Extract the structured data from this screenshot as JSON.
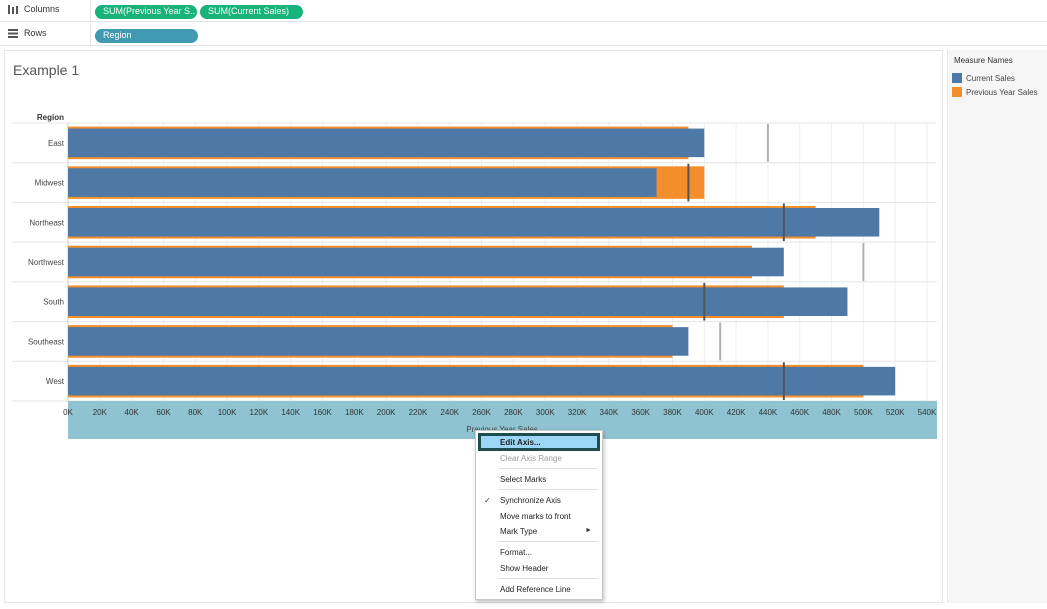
{
  "shelves": {
    "columns_label": "Columns",
    "rows_label": "Rows",
    "columns_pills": [
      "SUM(Previous Year S..",
      "SUM(Current Sales)"
    ],
    "rows_pill": "Region"
  },
  "sheet": {
    "title": "Example 1",
    "region_header": "Region",
    "axis_title": "Previous Year Sales"
  },
  "legend": {
    "title": "Measure Names",
    "items": [
      {
        "label": "Current Sales",
        "color": "#4e79a7"
      },
      {
        "label": "Previous Year Sales",
        "color": "#f28e2b"
      }
    ]
  },
  "chart_data": {
    "type": "bar",
    "orientation": "horizontal",
    "categories": [
      "East",
      "Midwest",
      "Northeast",
      "Northwest",
      "South",
      "Southeast",
      "West"
    ],
    "series": [
      {
        "name": "Current Sales",
        "values": [
          400000,
          370000,
          510000,
          450000,
          490000,
          390000,
          520000
        ],
        "color": "#4e79a7"
      },
      {
        "name": "Previous Year Sales",
        "values": [
          390000,
          400000,
          470000,
          430000,
          450000,
          380000,
          500000
        ],
        "color": "#f28e2b"
      }
    ],
    "reference_lines": [
      440000,
      390000,
      450000,
      500000,
      400000,
      410000,
      450000
    ],
    "xlabel": "Previous Year Sales",
    "ylabel": "Region",
    "xlim": [
      0,
      540000
    ],
    "x_ticks": [
      "0K",
      "20K",
      "40K",
      "60K",
      "80K",
      "100K",
      "120K",
      "140K",
      "160K",
      "180K",
      "200K",
      "220K",
      "240K",
      "260K",
      "280K",
      "300K",
      "320K",
      "340K",
      "360K",
      "380K",
      "400K",
      "420K",
      "440K",
      "460K",
      "480K",
      "500K",
      "520K",
      "540K"
    ],
    "grid": true
  },
  "context_menu": {
    "items": [
      {
        "label": "Edit Axis...",
        "enabled": true,
        "highlighted": true
      },
      {
        "label": "Clear Axis Range",
        "enabled": false
      },
      {
        "label": "Select Marks",
        "enabled": true
      },
      {
        "label": "Synchronize Axis",
        "enabled": true,
        "checked": true
      },
      {
        "label": "Move marks to front",
        "enabled": true
      },
      {
        "label": "Mark Type",
        "enabled": true,
        "submenu": true
      },
      {
        "label": "Format...",
        "enabled": true
      },
      {
        "label": "Show Header",
        "enabled": true
      },
      {
        "label": "Add Reference Line",
        "enabled": true
      }
    ],
    "check_glyph": "✓",
    "submenu_glyph": "►"
  }
}
